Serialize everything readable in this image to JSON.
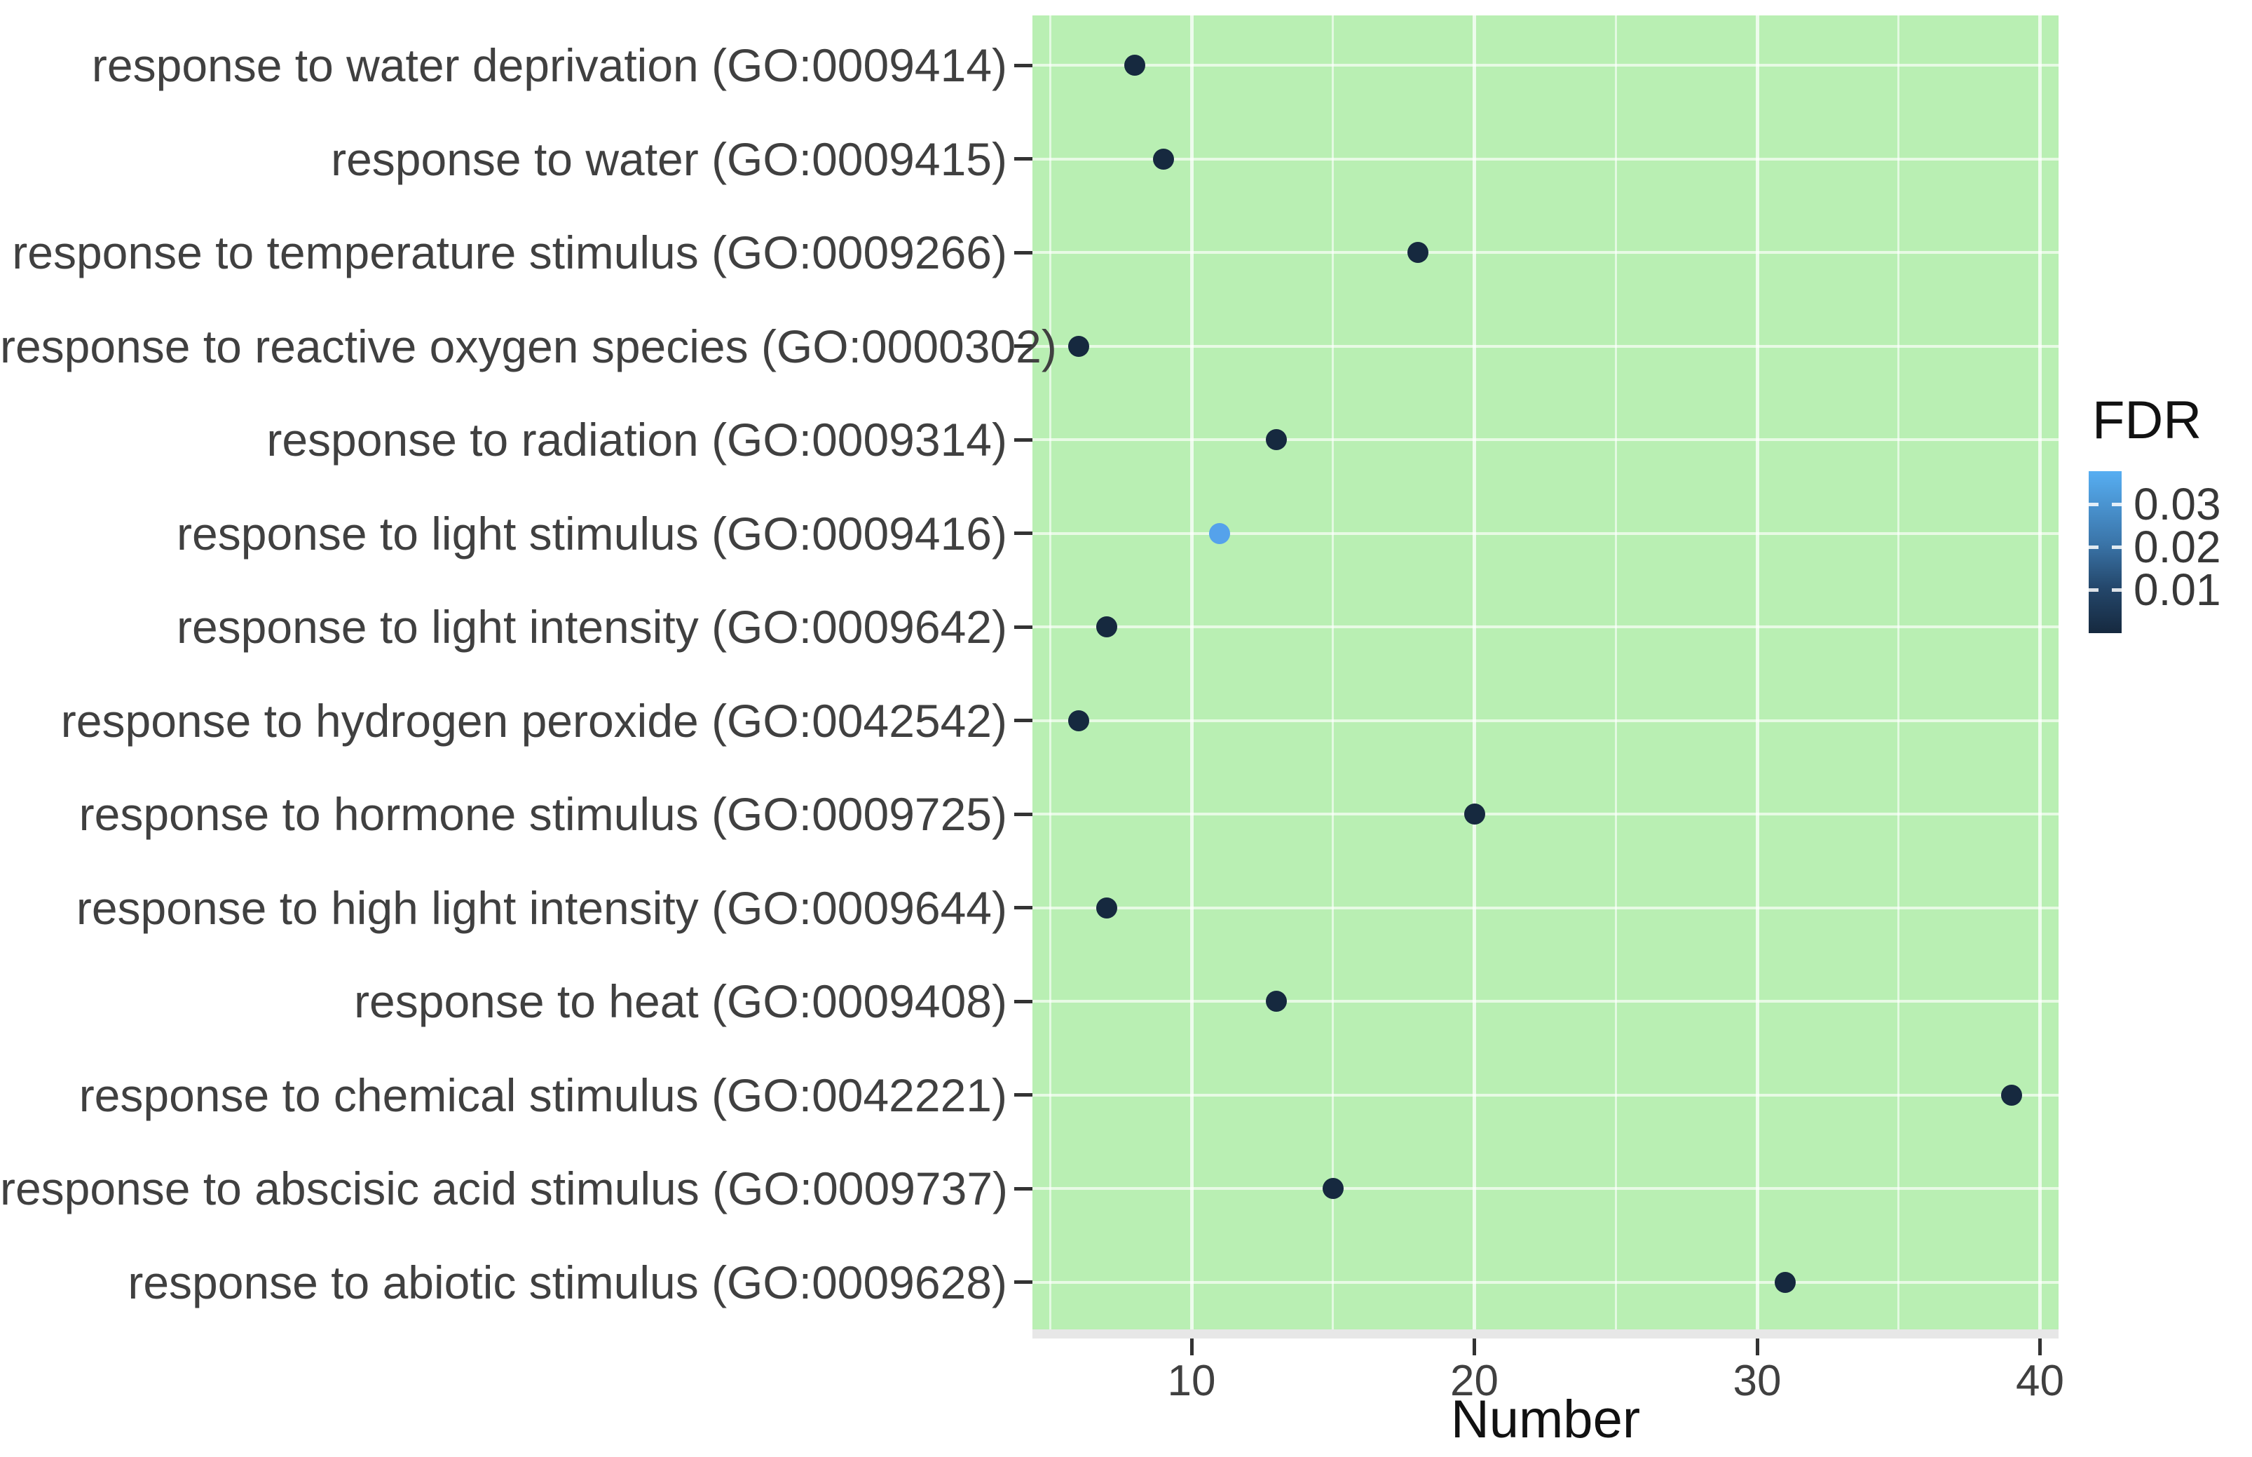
{
  "chart_data": {
    "type": "scatter",
    "title": "",
    "xlabel": "Number",
    "ylabel": "",
    "x_major_ticks": [
      10,
      20,
      30,
      40
    ],
    "x_minor_gridlines": [
      5,
      15,
      25,
      35
    ],
    "xlim": [
      4.4,
      40.6
    ],
    "grid": true,
    "panel_bg": "#b9efb3",
    "legend": {
      "title": "FDR",
      "position": "right",
      "type": "colorbar",
      "tick_labels": [
        "0.03",
        "0.02",
        "0.01"
      ],
      "high_color": "#57aef2",
      "low_color": "#16293f"
    },
    "categories": [
      "response to water deprivation (GO:0009414)",
      "response to water (GO:0009415)",
      "response to temperature stimulus (GO:0009266)",
      "response to reactive oxygen species (GO:0000302)",
      "response to radiation (GO:0009314)",
      "response to light stimulus (GO:0009416)",
      "response to light intensity (GO:0009642)",
      "response to hydrogen peroxide (GO:0042542)",
      "response to hormone stimulus (GO:0009725)",
      "response to high light intensity (GO:0009644)",
      "response to heat (GO:0009408)",
      "response to chemical stimulus (GO:0042221)",
      "response to abscisic acid stimulus (GO:0009737)",
      "response to abiotic stimulus (GO:0009628)"
    ],
    "points": [
      {
        "category": "response to water deprivation (GO:0009414)",
        "number": 8,
        "fdr_from_color": "<0.01",
        "color": "#16293f"
      },
      {
        "category": "response to water (GO:0009415)",
        "number": 9,
        "fdr_from_color": "<0.01",
        "color": "#16293f"
      },
      {
        "category": "response to temperature stimulus (GO:0009266)",
        "number": 18,
        "fdr_from_color": "<0.01",
        "color": "#16293f"
      },
      {
        "category": "response to reactive oxygen species (GO:0000302)",
        "number": 6,
        "fdr_from_color": "<0.01",
        "color": "#16293f"
      },
      {
        "category": "response to radiation (GO:0009314)",
        "number": 13,
        "fdr_from_color": "<0.01",
        "color": "#16293f"
      },
      {
        "category": "response to light stimulus (GO:0009416)",
        "number": 11,
        "fdr_from_color": "~0.03",
        "color": "#55a2eb"
      },
      {
        "category": "response to light intensity (GO:0009642)",
        "number": 7,
        "fdr_from_color": "<0.01",
        "color": "#16293f"
      },
      {
        "category": "response to hydrogen peroxide (GO:0042542)",
        "number": 6,
        "fdr_from_color": "<0.01",
        "color": "#16293f"
      },
      {
        "category": "response to hormone stimulus (GO:0009725)",
        "number": 20,
        "fdr_from_color": "<0.01",
        "color": "#16293f"
      },
      {
        "category": "response to high light intensity (GO:0009644)",
        "number": 7,
        "fdr_from_color": "<0.01",
        "color": "#16293f"
      },
      {
        "category": "response to heat (GO:0009408)",
        "number": 13,
        "fdr_from_color": "<0.01",
        "color": "#16293f"
      },
      {
        "category": "response to chemical stimulus (GO:0042221)",
        "number": 39,
        "fdr_from_color": "<0.01",
        "color": "#16293f"
      },
      {
        "category": "response to abscisic acid stimulus (GO:0009737)",
        "number": 15,
        "fdr_from_color": "<0.01",
        "color": "#16293f"
      },
      {
        "category": "response to abiotic stimulus (GO:0009628)",
        "number": 31,
        "fdr_from_color": "<0.01",
        "color": "#16293f"
      }
    ]
  }
}
